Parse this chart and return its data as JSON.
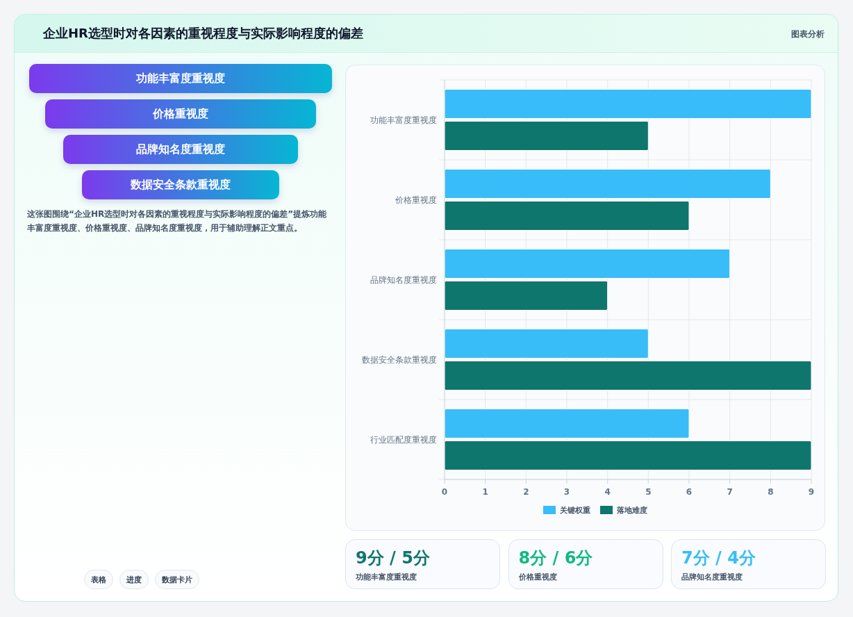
{
  "chart_data": [
    {
      "type": "other",
      "title": "企业HR选型时对各因素的重视程度与实际影响程度的偏差",
      "subtitle": "图表分析",
      "categories": [
        "功能丰富度重视度",
        "价格重视度",
        "品牌知名度重视度",
        "数据安全条款重视度"
      ],
      "annotations": [
        "这张图围绕“企业HR选型时对各因素的重视程度与实际影响程度的偏差”提炼功能丰富度重视度、价格重视度、品牌知名度重视度，用于辅助理解正文重点。",
        "表格",
        "进度",
        "数据卡片"
      ]
    },
    {
      "type": "bar",
      "orientation": "horizontal",
      "categories": [
        "功能丰富度重视度",
        "价格重视度",
        "品牌知名度重视度",
        "数据安全条款重视度",
        "行业匹配度重视度"
      ],
      "series": [
        {
          "name": "关键权重",
          "color": "#38bdf8",
          "values": [
            9,
            8,
            7,
            5,
            6
          ]
        },
        {
          "name": "落地难度",
          "color": "#0f766e",
          "values": [
            5,
            6,
            4,
            9,
            9
          ]
        }
      ],
      "xlim": [
        0,
        9
      ],
      "xticks": [
        0,
        1,
        2,
        3,
        4,
        5,
        6,
        7,
        8,
        9
      ],
      "grid": true,
      "legend": "bottom"
    },
    {
      "type": "other",
      "categories": [
        "功能丰富度重视度",
        "价格重视度",
        "品牌知名度重视度"
      ],
      "annotations": [
        "9分 / 5分",
        "8分 / 6分",
        "7分 / 4分"
      ]
    }
  ]
}
